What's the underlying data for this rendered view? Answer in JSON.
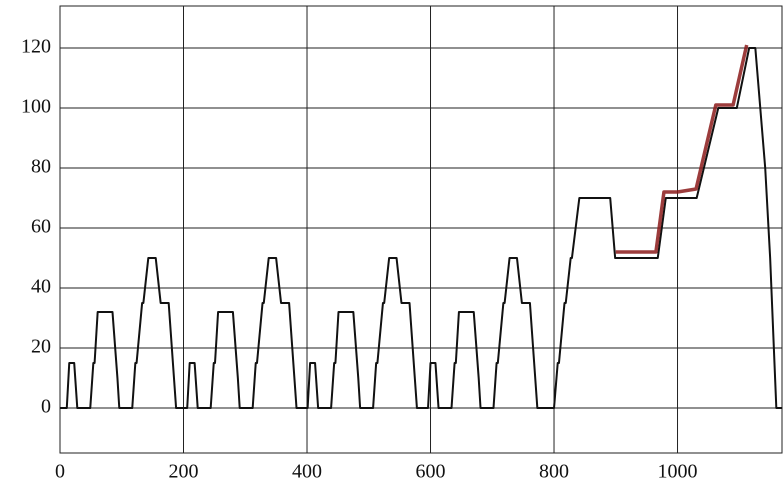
{
  "chart_data": {
    "type": "line",
    "xlim": [
      0,
      1170
    ],
    "ylim": [
      -15,
      134
    ],
    "xticks": [
      0,
      200,
      400,
      600,
      800,
      1000
    ],
    "yticks": [
      0,
      20,
      40,
      60,
      80,
      100,
      120
    ],
    "grid": true,
    "series": [
      {
        "color": "#111111",
        "x": [
          0,
          11,
          15,
          23,
          28,
          49,
          54,
          56,
          61,
          85,
          93,
          96,
          117,
          122,
          124,
          133,
          135,
          143,
          155,
          163,
          176,
          188,
          206,
          210,
          218,
          223,
          244,
          249,
          251,
          256,
          280,
          288,
          291,
          312,
          317,
          319,
          328,
          330,
          338,
          350,
          358,
          371,
          383,
          401,
          405,
          413,
          418,
          439,
          444,
          446,
          451,
          475,
          483,
          486,
          507,
          512,
          514,
          523,
          525,
          533,
          545,
          553,
          566,
          578,
          596,
          600,
          608,
          613,
          634,
          639,
          641,
          646,
          670,
          678,
          681,
          702,
          707,
          709,
          718,
          720,
          728,
          740,
          748,
          761,
          773,
          800,
          806,
          808,
          817,
          819,
          827,
          829,
          841,
          891,
          899,
          968,
          981,
          1031,
          1066,
          1096,
          1116,
          1126,
          1142,
          1150,
          1160,
          1170
        ],
        "values": [
          0,
          0,
          15,
          15,
          0,
          0,
          15,
          15,
          32,
          32,
          10,
          0,
          0,
          15,
          15,
          35,
          35,
          50,
          50,
          35,
          35,
          0,
          0,
          15,
          15,
          0,
          0,
          15,
          15,
          32,
          32,
          10,
          0,
          0,
          15,
          15,
          35,
          35,
          50,
          50,
          35,
          35,
          0,
          0,
          15,
          15,
          0,
          0,
          15,
          15,
          32,
          32,
          10,
          0,
          0,
          15,
          15,
          35,
          35,
          50,
          50,
          35,
          35,
          0,
          0,
          15,
          15,
          0,
          0,
          15,
          15,
          32,
          32,
          10,
          0,
          0,
          15,
          15,
          35,
          35,
          50,
          50,
          35,
          35,
          0,
          0,
          15,
          15,
          35,
          35,
          50,
          50,
          70,
          70,
          50,
          50,
          70,
          70,
          100,
          100,
          120,
          120,
          80,
          50,
          0,
          0
        ]
      },
      {
        "color": "#8b1a1a",
        "x": [
          900,
          965,
          978,
          1000,
          1030,
          1062,
          1090,
          1112
        ],
        "values": [
          52,
          52,
          72,
          72,
          73,
          101,
          101,
          121
        ]
      }
    ]
  }
}
